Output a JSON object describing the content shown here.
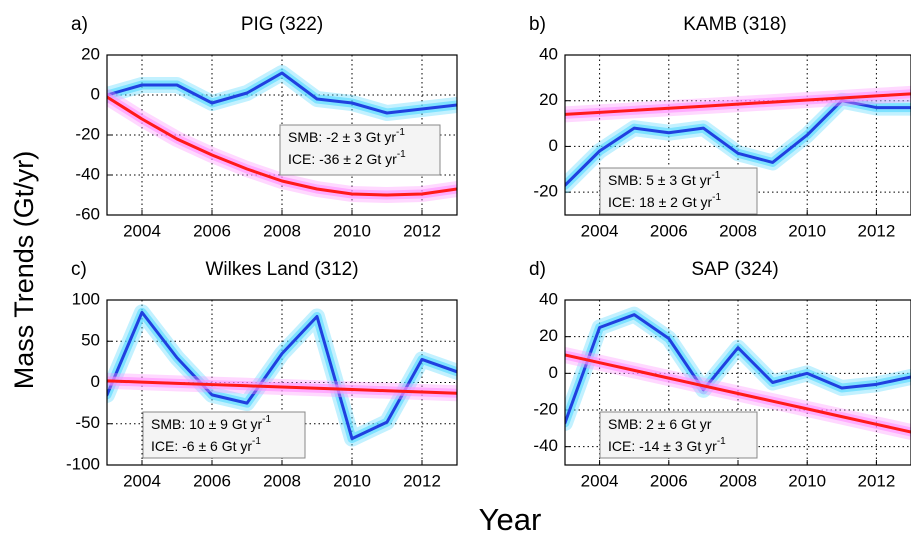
{
  "ylabel": "Mass Trends (Gt/yr)",
  "xlabel": "Year",
  "chart_data": [
    {
      "type": "line",
      "label": "a)",
      "title": "PIG (322)",
      "x": [
        2003,
        2004,
        2005,
        2006,
        2007,
        2008,
        2009,
        2010,
        2011,
        2012,
        2013
      ],
      "series": [
        {
          "color": "#2040e0",
          "band_color": "#50d8ff",
          "values": [
            0,
            5,
            5,
            -4,
            1,
            11,
            -2,
            -4,
            -9,
            -7,
            -5
          ]
        },
        {
          "color": "#ff1a1a",
          "band_color": "#ff90ff",
          "values": [
            -1,
            -12,
            -22,
            -30,
            -37,
            -43,
            -47,
            -49.5,
            -50,
            -49.5,
            -47
          ]
        }
      ],
      "xlim": [
        2003,
        2013
      ],
      "xticks": [
        2004,
        2006,
        2008,
        2010,
        2012
      ],
      "ylim": [
        -60,
        20
      ],
      "yticks": [
        -60,
        -40,
        -20,
        0,
        20
      ],
      "grid": true,
      "annotations": [
        {
          "text": "SMB: -2 ± 3 Gt yr",
          "sup": "-1"
        },
        {
          "text": "ICE: -36 ± 2 Gt yr",
          "sup": "-1"
        }
      ]
    },
    {
      "type": "line",
      "label": "b)",
      "title": "KAMB (318)",
      "x": [
        2003,
        2004,
        2005,
        2006,
        2007,
        2008,
        2009,
        2010,
        2011,
        2012,
        2013
      ],
      "series": [
        {
          "color": "#2040e0",
          "band_color": "#50d8ff",
          "values": [
            -17,
            -2,
            8,
            6,
            8,
            -3,
            -7,
            5,
            20,
            17,
            17
          ]
        },
        {
          "color": "#ff1a1a",
          "band_color": "#ff90ff",
          "values": [
            14,
            14.9,
            15.8,
            16.7,
            17.6,
            18.5,
            19.4,
            20.3,
            21.2,
            22.1,
            23
          ]
        }
      ],
      "xlim": [
        2003,
        2013
      ],
      "xticks": [
        2004,
        2006,
        2008,
        2010,
        2012
      ],
      "ylim": [
        -30,
        40
      ],
      "yticks": [
        -20,
        0,
        20,
        40
      ],
      "grid": true,
      "annotations": [
        {
          "text": "SMB: 5 ± 3 Gt yr",
          "sup": "-1"
        },
        {
          "text": "ICE: 18 ± 2 Gt yr",
          "sup": "-1"
        }
      ]
    },
    {
      "type": "line",
      "label": "c)",
      "title": "Wilkes Land (312)",
      "x": [
        2003,
        2004,
        2005,
        2006,
        2007,
        2008,
        2009,
        2010,
        2011,
        2012,
        2013
      ],
      "series": [
        {
          "color": "#2040e0",
          "band_color": "#50d8ff",
          "values": [
            -15,
            85,
            30,
            -15,
            -25,
            35,
            80,
            -68,
            -48,
            28,
            13
          ]
        },
        {
          "color": "#ff1a1a",
          "band_color": "#ff90ff",
          "values": [
            2,
            0.5,
            -1,
            -2.5,
            -4,
            -5.5,
            -7,
            -8.5,
            -10,
            -11.5,
            -13
          ]
        }
      ],
      "xlim": [
        2003,
        2013
      ],
      "xticks": [
        2004,
        2006,
        2008,
        2010,
        2012
      ],
      "ylim": [
        -100,
        100
      ],
      "yticks": [
        -100,
        -50,
        0,
        50,
        100
      ],
      "grid": true,
      "annotations": [
        {
          "text": "SMB: 10 ± 9 Gt yr",
          "sup": "-1"
        },
        {
          "text": "ICE: -6 ± 6 Gt yr",
          "sup": "-1"
        }
      ]
    },
    {
      "type": "line",
      "label": "d)",
      "title": "SAP (324)",
      "x": [
        2003,
        2004,
        2005,
        2006,
        2007,
        2008,
        2009,
        2010,
        2011,
        2012,
        2013
      ],
      "series": [
        {
          "color": "#2040e0",
          "band_color": "#50d8ff",
          "values": [
            -27,
            25,
            32,
            19,
            -9,
            14,
            -5,
            0,
            -8,
            -6,
            -2
          ]
        },
        {
          "color": "#ff1a1a",
          "band_color": "#ff90ff",
          "values": [
            10,
            5.8,
            1.6,
            -2.6,
            -6.8,
            -11,
            -15.2,
            -19.4,
            -23.6,
            -27.8,
            -32
          ]
        }
      ],
      "xlim": [
        2003,
        2013
      ],
      "xticks": [
        2004,
        2006,
        2008,
        2010,
        2012
      ],
      "ylim": [
        -50,
        40
      ],
      "yticks": [
        -40,
        -20,
        0,
        20,
        40
      ],
      "grid": true,
      "annotations": [
        {
          "text": "SMB: 2 ± 6 Gt yr"
        },
        {
          "text": "ICE: -14 ± 3 Gt yr",
          "sup": "-1"
        }
      ]
    }
  ]
}
